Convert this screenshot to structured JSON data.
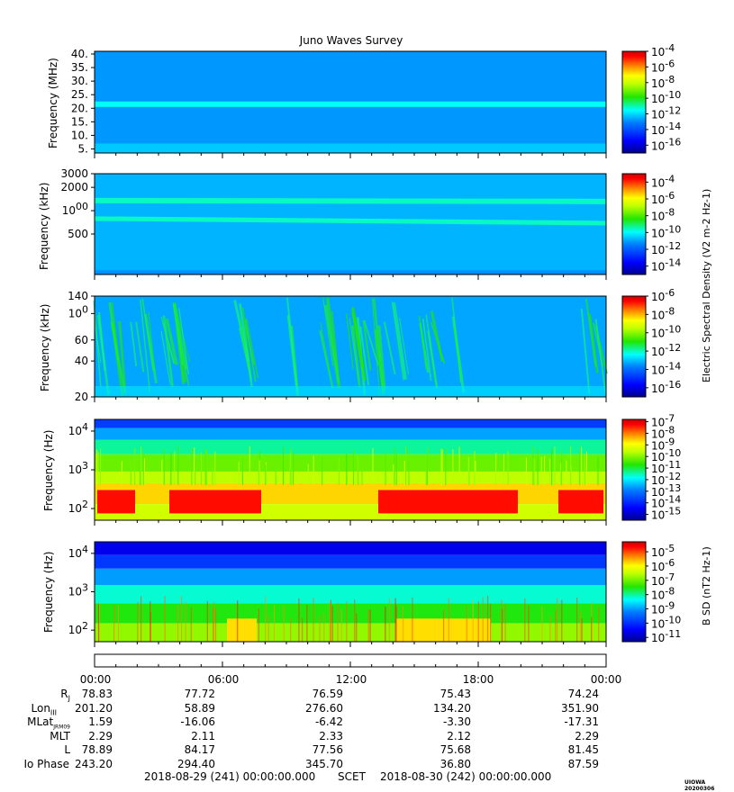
{
  "title": "Juno Waves Survey",
  "colors": {
    "cmap": [
      "#00008f",
      "#0000ff",
      "#007fff",
      "#00ffff",
      "#7fff7f",
      "#ffff00",
      "#ff7f00",
      "#ff0000",
      "#8f0000"
    ]
  },
  "chart_data": [
    {
      "type": "heatmap",
      "panel": "p1",
      "ylabel": "Frequency (MHz)",
      "yscale": "linear",
      "ylim": [
        3.5,
        41
      ],
      "yticks": [
        "40.",
        "35.",
        "30.",
        "25.",
        "20.",
        "15.",
        "10.",
        "5."
      ],
      "ytick_values": [
        40,
        35,
        30,
        25,
        20,
        15,
        10,
        5
      ],
      "background_level": -12.8,
      "bands": [
        {
          "y_from": 20.5,
          "y_to": 22.5,
          "level": -11.5
        }
      ],
      "colorbar": {
        "ticks": [
          "10-4",
          "10-6",
          "10-8",
          "10-10",
          "10-12",
          "10-14",
          "10-16"
        ],
        "range": [
          -17,
          -4
        ]
      }
    },
    {
      "type": "heatmap",
      "panel": "p2",
      "ylabel": "Frequency (kHz)",
      "yscale": "log",
      "ylim": [
        150,
        3000
      ],
      "yticks": [
        "3000",
        "2000",
        "1000",
        "500"
      ],
      "ytick_values": [
        3000,
        2000,
        1000,
        500
      ],
      "background_level": -10.8,
      "bands": [
        {
          "y_from": 680,
          "y_to": 780,
          "level": -9.6
        },
        {
          "y_from": 1150,
          "y_to": 1350,
          "level": -9.6
        }
      ],
      "colorbar": {
        "ticks": [
          "10-4",
          "10-6",
          "10-8",
          "10-10",
          "10-12",
          "10-14"
        ],
        "range": [
          -15,
          -3
        ]
      }
    },
    {
      "type": "heatmap",
      "panel": "p3",
      "ylabel": "Frequency (kHz)",
      "yscale": "log",
      "ylim": [
        20,
        140
      ],
      "yticks": [
        "140",
        "100",
        "60",
        "40",
        "20"
      ],
      "ytick_values": [
        140,
        100,
        60,
        40,
        20
      ],
      "background_level": -13.3,
      "colorbar": {
        "ticks": [
          "10-6",
          "10-8",
          "10-10",
          "10-12",
          "10-14",
          "10-16"
        ],
        "range": [
          -17,
          -6
        ]
      },
      "colorbar_label": "Electric Spectral Density (V2 m-2 Hz-1)"
    },
    {
      "type": "heatmap",
      "panel": "p4",
      "ylabel": "Frequency (Hz)",
      "yscale": "log",
      "ylim": [
        50,
        20000
      ],
      "yticks": [
        "104",
        "103",
        "102"
      ],
      "ytick_values": [
        10000,
        1000,
        100
      ],
      "colorbar": {
        "ticks": [
          "10-7",
          "10-8",
          "10-9",
          "10-10",
          "10-11",
          "10-12",
          "10-13",
          "10-14",
          "10-15"
        ],
        "range": [
          -15.5,
          -6.8
        ]
      }
    },
    {
      "type": "heatmap",
      "panel": "p5",
      "ylabel": "Frequency (Hz)",
      "yscale": "log",
      "ylim": [
        50,
        20000
      ],
      "yticks": [
        "104",
        "103",
        "102"
      ],
      "ytick_values": [
        10000,
        1000,
        100
      ],
      "colorbar": {
        "ticks": [
          "10-5",
          "10-6",
          "10-7",
          "10-8",
          "10-9",
          "10-10",
          "10-11"
        ],
        "range": [
          -11.3,
          -4.3
        ]
      },
      "colorbar_label": "B SD (nT2 Hz-1)"
    }
  ],
  "time_axis": {
    "ticks": [
      "00:00",
      "06:00",
      "12:00",
      "18:00",
      "00:00"
    ]
  },
  "ephemeris": [
    {
      "name": "RJ",
      "values": [
        "78.83",
        "77.72",
        "76.59",
        "75.43",
        "74.24"
      ]
    },
    {
      "name": "LonIII",
      "values": [
        "201.20",
        "58.89",
        "276.60",
        "134.20",
        "351.90"
      ]
    },
    {
      "name": "MLatJRM09",
      "values": [
        "1.59",
        "-16.06",
        "-6.42",
        "-3.30",
        "-17.31"
      ]
    },
    {
      "name": "MLT",
      "values": [
        "2.29",
        "2.11",
        "2.33",
        "2.12",
        "2.29"
      ]
    },
    {
      "name": "L",
      "values": [
        "78.89",
        "84.17",
        "77.56",
        "75.68",
        "81.45"
      ]
    },
    {
      "name": "Io Phase",
      "values": [
        "243.20",
        "294.40",
        "345.70",
        "36.80",
        "87.59"
      ]
    }
  ],
  "footer": {
    "left": "2018-08-29 (241) 00:00:00.000",
    "mid": "SCET",
    "right": "2018-08-30 (242) 00:00:00.000"
  },
  "credit": "UIOWA 20200306"
}
